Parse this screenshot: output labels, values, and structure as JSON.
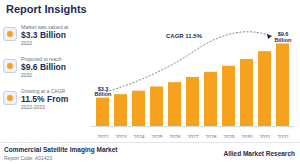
{
  "header": {
    "title": "Report Insights"
  },
  "stats": [
    {
      "label": "Market was valued at",
      "value": "$3.3 Billion",
      "year": "2022"
    },
    {
      "label": "Projected to reach",
      "value": "$9.6 Billion",
      "year": "2032"
    },
    {
      "label": "Growing at a CAGR",
      "value": "11.5% From",
      "year": "2022-2032"
    }
  ],
  "footer": {
    "title": "Commercial Satellite Imaging Market",
    "code": "Report Code: A01423",
    "brand": "Allied Market Research"
  },
  "chart_data": {
    "type": "bar",
    "categories": [
      "2022",
      "2023",
      "2024",
      "2025",
      "2026",
      "2027",
      "2028",
      "2029",
      "2030",
      "2031",
      "2032"
    ],
    "values": [
      3.3,
      3.7,
      4.1,
      4.6,
      5.1,
      5.7,
      6.3,
      7.0,
      7.8,
      8.7,
      9.6
    ],
    "value_labels": [
      "$3.3 Billion",
      null,
      null,
      null,
      null,
      null,
      null,
      null,
      null,
      null,
      "$9.6 Billion"
    ],
    "data_labels": true,
    "color": "#f6a21e",
    "ylim": [
      0,
      10
    ],
    "annotation": "CAGR 11.5%",
    "tick_labels": "x"
  }
}
